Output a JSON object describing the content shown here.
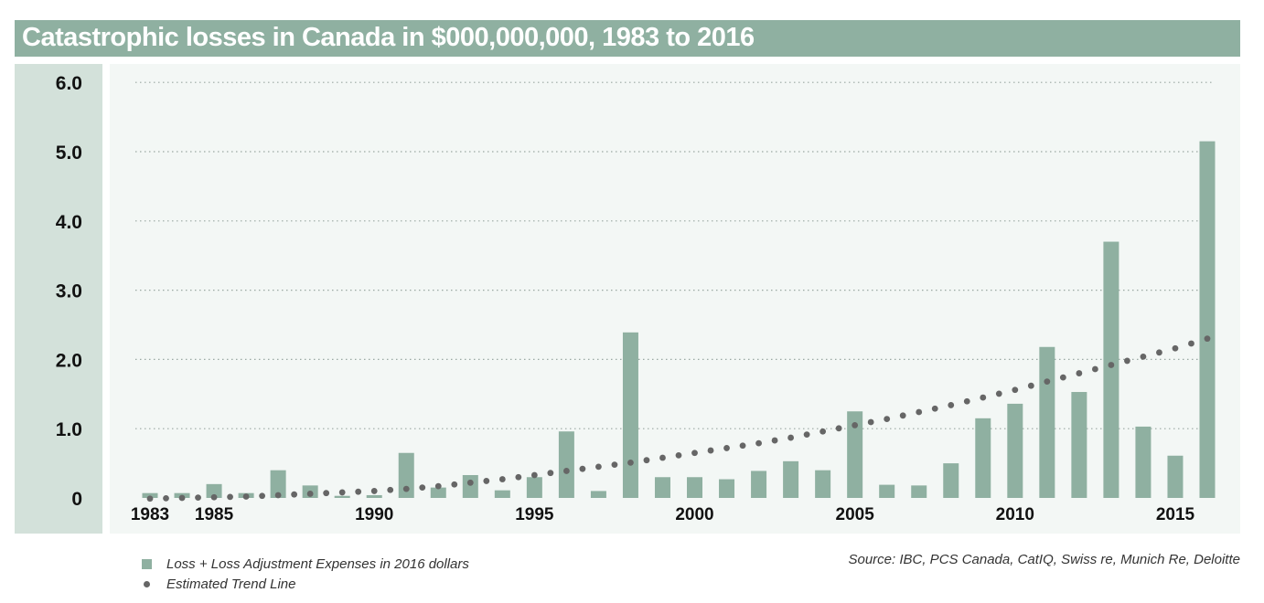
{
  "chart_data": {
    "type": "bar",
    "title": "Catastrophic losses in Canada in $000,000,000, 1983 to 2016",
    "x": [
      1983,
      1984,
      1985,
      1986,
      1987,
      1988,
      1989,
      1990,
      1991,
      1992,
      1993,
      1994,
      1995,
      1996,
      1997,
      1998,
      1999,
      2000,
      2001,
      2002,
      2003,
      2004,
      2005,
      2006,
      2007,
      2008,
      2009,
      2010,
      2011,
      2012,
      2013,
      2014,
      2015,
      2016
    ],
    "x_tick_labels": [
      {
        "year": 1983,
        "label": "1983"
      },
      {
        "year": 1985,
        "label": "1985"
      },
      {
        "year": 1990,
        "label": "1990"
      },
      {
        "year": 1995,
        "label": "1995"
      },
      {
        "year": 2000,
        "label": "2000"
      },
      {
        "year": 2005,
        "label": "2005"
      },
      {
        "year": 2010,
        "label": "2010"
      },
      {
        "year": 2015,
        "label": "2015"
      }
    ],
    "y_ticks": [
      {
        "value": 0,
        "label": "0"
      },
      {
        "value": 1,
        "label": "1.0"
      },
      {
        "value": 2,
        "label": "2.0"
      },
      {
        "value": 3,
        "label": "3.0"
      },
      {
        "value": 4,
        "label": "4.0"
      },
      {
        "value": 5,
        "label": "5.0"
      },
      {
        "value": 6,
        "label": "6.0"
      }
    ],
    "ylim": [
      0,
      6
    ],
    "grid": "horizontal dotted",
    "series": [
      {
        "name": "Loss + Loss Adjustment Expenses in 2016 dollars",
        "kind": "bar",
        "color": "#8fb0a1",
        "values": [
          0.07,
          0.07,
          0.2,
          0.07,
          0.4,
          0.18,
          0.03,
          0.04,
          0.65,
          0.15,
          0.33,
          0.11,
          0.3,
          0.96,
          0.1,
          2.39,
          0.3,
          0.3,
          0.27,
          0.39,
          0.53,
          0.4,
          1.25,
          0.19,
          0.18,
          0.5,
          1.15,
          1.36,
          2.18,
          1.53,
          3.7,
          1.03,
          0.61,
          5.15
        ]
      },
      {
        "name": "Estimated Trend Line",
        "kind": "dotted-line",
        "color": "#666666",
        "values": [
          -0.01,
          0.0,
          0.01,
          0.02,
          0.04,
          0.06,
          0.08,
          0.1,
          0.13,
          0.17,
          0.22,
          0.27,
          0.33,
          0.39,
          0.45,
          0.51,
          0.58,
          0.65,
          0.72,
          0.79,
          0.87,
          0.96,
          1.05,
          1.14,
          1.24,
          1.34,
          1.45,
          1.56,
          1.68,
          1.8,
          1.92,
          2.04,
          2.16,
          2.3
        ]
      }
    ],
    "legend_position": "bottom-left"
  },
  "source": "Source: IBC, PCS Canada, CatIQ, Swiss re, Munich Re, Deloitte",
  "colors": {
    "title_bar": "#8fb0a1",
    "y_panel": "#d3e1da",
    "plot_bg": "#f3f7f5",
    "bar": "#8fb0a1",
    "trend": "#666666"
  }
}
